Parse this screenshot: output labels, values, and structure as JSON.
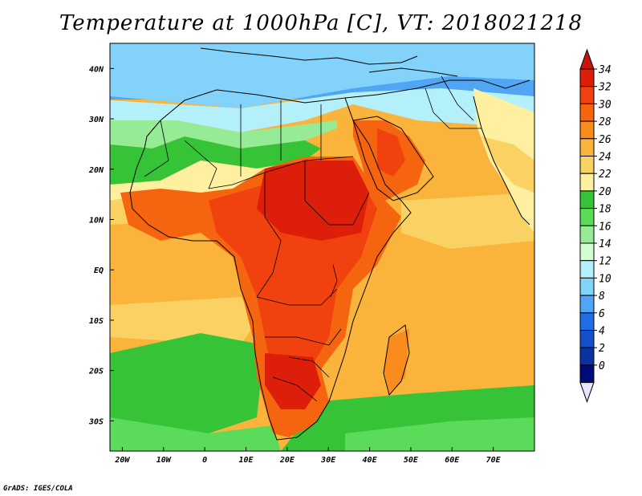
{
  "title": "Temperature at 1000hPa [C], VT: 2018021218",
  "footer": "GrADS: IGES/COLA",
  "map": {
    "lon_range": [
      -23,
      80
    ],
    "lat_range": [
      -36,
      45
    ],
    "lon_ticks": [
      "20W",
      "10W",
      "0",
      "10E",
      "20E",
      "30E",
      "40E",
      "50E",
      "60E",
      "70E"
    ],
    "lat_ticks": [
      "40N",
      "30N",
      "20N",
      "10N",
      "EQ",
      "10S",
      "20S",
      "30S"
    ]
  },
  "colorbar": {
    "labels": [
      "34",
      "32",
      "30",
      "28",
      "26",
      "24",
      "22",
      "20",
      "18",
      "16",
      "14",
      "12",
      "10",
      "8",
      "6",
      "4",
      "2",
      "0"
    ],
    "colors": [
      "#dc1e0a",
      "#f0410f",
      "#f5640f",
      "#fa8c1e",
      "#fab43c",
      "#fad264",
      "#fff0a0",
      "#37c337",
      "#5adc5a",
      "#96eb96",
      "#d2ffd2",
      "#b4f0fa",
      "#82d2fa",
      "#50a5f5",
      "#1e6ee6",
      "#1450c8",
      "#0a32a0",
      "#000a78"
    ],
    "top_arrow_color": "#c8140a",
    "bottom_arrow_color": "#e6e6ff"
  }
}
